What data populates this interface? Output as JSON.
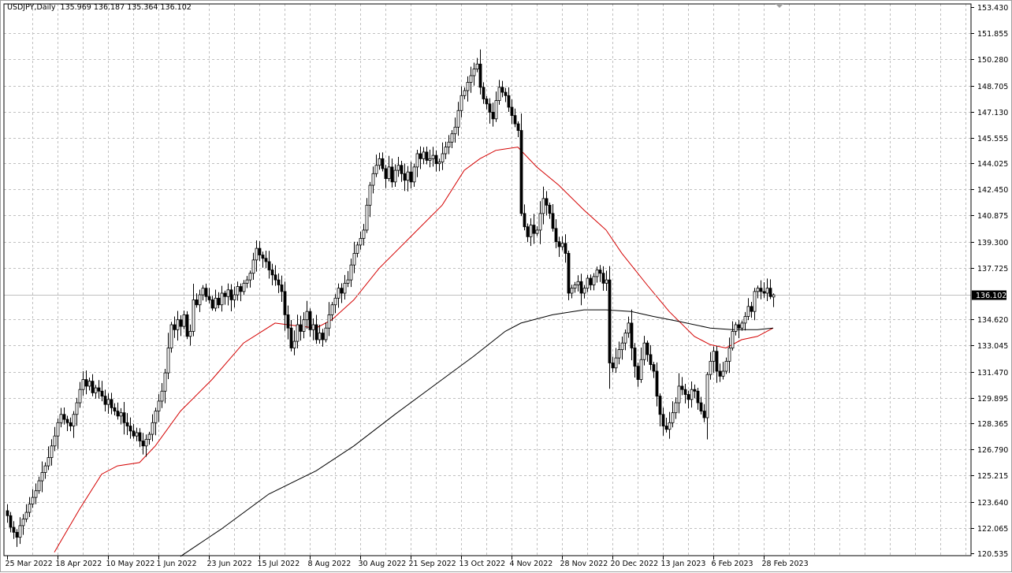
{
  "header": {
    "symbol": "USDJPY,Daily",
    "open": "135.969",
    "high": "136.187",
    "low": "135.364",
    "close": "136.102"
  },
  "colors": {
    "bull_body": "#ffffff",
    "bear_body": "#000000",
    "ma_fast": "#d40000",
    "ma_slow": "#000000",
    "grid": "#c0c0c0",
    "current_price_line": "#c0c0c0",
    "price_tag_bg": "#000000"
  },
  "chart_data": {
    "type": "candlestick",
    "title": "USDJPY,Daily",
    "grid": true,
    "ylim": [
      120.535,
      153.43
    ],
    "y_ticks": [
      "153.430",
      "151.855",
      "150.280",
      "148.705",
      "147.130",
      "145.555",
      "144.025",
      "142.450",
      "140.875",
      "139.300",
      "137.725",
      "134.620",
      "133.045",
      "131.470",
      "129.895",
      "128.365",
      "126.790",
      "125.215",
      "123.640",
      "122.065",
      "120.535"
    ],
    "current_price": "136.102",
    "x_ticks": [
      "25 Mar 2022",
      "18 Apr 2022",
      "10 May 2022",
      "1 Jun 2022",
      "23 Jun 2022",
      "15 Jul 2022",
      "8 Aug 2022",
      "30 Aug 2022",
      "21 Sep 2022",
      "13 Oct 2022",
      "4 Nov 2022",
      "28 Nov 2022",
      "20 Dec 2022",
      "13 Jan 2023",
      "6 Feb 2023",
      "28 Feb 2023"
    ],
    "x_tick_every_bars": 16,
    "last_bar": {
      "open": 135.969,
      "high": 136.187,
      "low": 135.364,
      "close": 136.102
    },
    "closes": [
      122.8,
      122.1,
      121.8,
      121.5,
      122.2,
      122.6,
      123.0,
      123.5,
      123.9,
      124.3,
      124.9,
      125.4,
      125.8,
      126.3,
      127.0,
      127.6,
      128.4,
      128.9,
      128.6,
      128.4,
      128.2,
      128.9,
      129.6,
      130.4,
      131.0,
      130.6,
      130.9,
      130.2,
      130.5,
      130.3,
      130.0,
      129.5,
      129.8,
      129.3,
      129.1,
      128.8,
      129.0,
      128.4,
      128.2,
      127.9,
      127.6,
      127.8,
      127.3,
      127.0,
      127.4,
      127.7,
      128.4,
      129.1,
      129.7,
      130.3,
      131.4,
      132.9,
      134.3,
      134.0,
      134.6,
      134.2,
      134.9,
      133.6,
      133.9,
      135.8,
      135.5,
      136.1,
      136.5,
      136.0,
      135.8,
      135.3,
      135.9,
      135.5,
      136.2,
      136.0,
      136.4,
      135.8,
      136.1,
      136.6,
      136.3,
      136.8,
      137.0,
      137.4,
      138.2,
      138.9,
      138.5,
      138.3,
      138.1,
      137.6,
      137.3,
      137.0,
      136.7,
      136.3,
      134.9,
      134.1,
      132.9,
      133.3,
      134.3,
      133.9,
      134.6,
      135.1,
      134.0,
      134.3,
      133.4,
      133.8,
      133.4,
      134.1,
      134.9,
      135.5,
      135.9,
      136.5,
      136.2,
      136.8,
      137.0,
      137.9,
      138.6,
      139.1,
      139.5,
      140.0,
      141.5,
      142.7,
      143.4,
      143.9,
      144.3,
      143.7,
      143.1,
      143.8,
      142.9,
      143.6,
      143.9,
      143.4,
      143.0,
      143.5,
      142.9,
      143.8,
      144.6,
      144.3,
      144.7,
      144.2,
      144.3,
      144.5,
      144.0,
      144.1,
      144.6,
      145.0,
      145.3,
      145.8,
      146.2,
      147.2,
      148.1,
      148.4,
      148.9,
      149.3,
      149.7,
      150.0,
      148.6,
      147.9,
      147.6,
      147.1,
      146.7,
      147.8,
      148.6,
      148.3,
      148.1,
      147.4,
      146.9,
      146.4,
      146.0,
      141.0,
      140.2,
      139.6,
      140.3,
      139.8,
      140.0,
      141.0,
      141.9,
      141.5,
      141.0,
      140.1,
      139.3,
      139.0,
      139.2,
      138.6,
      136.2,
      136.5,
      136.7,
      136.9,
      136.2,
      136.5,
      137.1,
      136.7,
      137.2,
      137.6,
      137.4,
      136.8,
      137.0,
      132.0,
      131.7,
      132.3,
      132.8,
      133.2,
      133.8,
      134.4,
      132.9,
      131.8,
      131.0,
      132.2,
      133.2,
      132.5,
      131.9,
      131.5,
      130.0,
      128.9,
      128.2,
      128.0,
      128.4,
      129.0,
      129.6,
      130.6,
      130.4,
      130.1,
      129.8,
      130.4,
      130.3,
      129.6,
      129.1,
      128.7,
      131.3,
      132.1,
      132.7,
      131.5,
      131.2,
      131.5,
      132.1,
      132.9,
      133.9,
      134.3,
      134.1,
      134.4,
      134.8,
      135.4,
      135.1,
      136.3,
      136.5,
      136.3,
      136.2,
      136.5,
      136.0,
      136.102
    ],
    "series": [
      {
        "type": "line",
        "color": "#d40000",
        "points": [
          [
            15,
            120.6
          ],
          [
            23,
            123.2
          ],
          [
            30,
            125.3
          ],
          [
            35,
            125.8
          ],
          [
            42,
            126.0
          ],
          [
            47,
            127.0
          ],
          [
            55,
            129.1
          ],
          [
            65,
            131.0
          ],
          [
            75,
            133.2
          ],
          [
            85,
            134.4
          ],
          [
            89,
            134.3
          ],
          [
            98,
            134.1
          ],
          [
            103,
            134.6
          ],
          [
            110,
            135.8
          ],
          [
            118,
            137.7
          ],
          [
            128,
            139.6
          ],
          [
            138,
            141.5
          ],
          [
            145,
            143.6
          ],
          [
            150,
            144.3
          ],
          [
            155,
            144.8
          ],
          [
            162,
            145.0
          ],
          [
            168,
            143.8
          ],
          [
            175,
            142.7
          ],
          [
            183,
            141.2
          ],
          [
            190,
            140.0
          ],
          [
            195,
            138.6
          ],
          [
            203,
            136.7
          ],
          [
            210,
            135.1
          ],
          [
            218,
            133.6
          ],
          [
            223,
            133.1
          ],
          [
            228,
            132.9
          ],
          [
            233,
            133.4
          ],
          [
            238,
            133.6
          ],
          [
            243,
            134.1
          ]
        ]
      },
      {
        "type": "line",
        "color": "#000000",
        "points": [
          [
            55,
            120.35
          ],
          [
            68,
            122.0
          ],
          [
            83,
            124.1
          ],
          [
            98,
            125.5
          ],
          [
            110,
            127.0
          ],
          [
            123,
            128.9
          ],
          [
            138,
            131.0
          ],
          [
            148,
            132.4
          ],
          [
            158,
            133.9
          ],
          [
            163,
            134.4
          ],
          [
            173,
            134.9
          ],
          [
            183,
            135.2
          ],
          [
            190,
            135.2
          ],
          [
            198,
            135.1
          ],
          [
            205,
            134.8
          ],
          [
            213,
            134.5
          ],
          [
            223,
            134.1
          ],
          [
            230,
            134.0
          ],
          [
            238,
            134.0
          ],
          [
            243,
            134.1
          ]
        ]
      }
    ]
  }
}
